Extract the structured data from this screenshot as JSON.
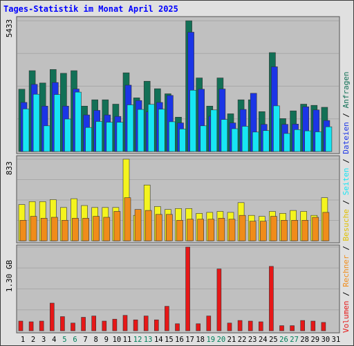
{
  "title": "Tages-Statistik im Monat April 2025",
  "chart_data": [
    {
      "type": "bar",
      "panel": "top",
      "y_max_label": "5433",
      "ylim": [
        0,
        5433
      ],
      "categories": [
        "1",
        "2",
        "3",
        "4",
        "5",
        "6",
        "7",
        "8",
        "9",
        "10",
        "11",
        "12",
        "13",
        "14",
        "15",
        "16",
        "17",
        "18",
        "19",
        "20",
        "21",
        "22",
        "23",
        "24",
        "25",
        "26",
        "27",
        "28",
        "29",
        "30",
        "31"
      ],
      "weekend_days": [
        "5",
        "6",
        "12",
        "13",
        "19",
        "20",
        "26",
        "27"
      ],
      "series": [
        {
          "name": "Anfragen",
          "color": "#127056",
          "values": [
            2590,
            3360,
            2850,
            3410,
            3250,
            3360,
            1890,
            2150,
            2150,
            1970,
            3270,
            2230,
            2920,
            2610,
            2400,
            1430,
            5433,
            3060,
            1890,
            3060,
            1570,
            2150,
            2150,
            1660,
            4110,
            1370,
            1690,
            1970,
            1920,
            1840,
            null
          ]
        },
        {
          "name": "Dateien",
          "color": "#1b35e6",
          "values": [
            2040,
            2790,
            1890,
            2870,
            1890,
            2600,
            1520,
            1710,
            1520,
            1460,
            2760,
            2120,
            1650,
            2040,
            2330,
            1190,
            4960,
            2590,
            1470,
            2600,
            1190,
            1750,
            2420,
            1130,
            3520,
            1130,
            1140,
            1860,
            1730,
            1290,
            null
          ]
        },
        {
          "name": "Seiten",
          "color": "#17e6f4",
          "values": [
            1770,
            2380,
            1070,
            2370,
            1350,
            2470,
            1000,
            1250,
            1220,
            1220,
            1940,
            1750,
            1960,
            1760,
            1240,
            940,
            2550,
            1070,
            1730,
            1330,
            950,
            1050,
            810,
            870,
            1900,
            750,
            910,
            860,
            820,
            1030,
            null
          ]
        }
      ]
    },
    {
      "type": "bar",
      "panel": "middle",
      "y_max_label": "833",
      "ylim": [
        0,
        833
      ],
      "series": [
        {
          "name": "Besuche",
          "color": "#f4f41e",
          "values": [
            370,
            400,
            400,
            420,
            340,
            430,
            360,
            340,
            340,
            340,
            833,
            260,
            570,
            350,
            320,
            330,
            330,
            280,
            290,
            300,
            290,
            390,
            260,
            250,
            300,
            280,
            310,
            300,
            260,
            440,
            null
          ]
        },
        {
          "name": "Rechner",
          "color": "#f08c1a",
          "values": [
            210,
            250,
            230,
            240,
            210,
            230,
            230,
            250,
            240,
            300,
            440,
            320,
            310,
            270,
            270,
            210,
            220,
            220,
            220,
            230,
            220,
            260,
            200,
            200,
            250,
            210,
            210,
            210,
            240,
            290,
            null
          ]
        }
      ]
    },
    {
      "type": "bar",
      "panel": "bottom",
      "y_max_label": "1.30 GB",
      "ylim": [
        0,
        1.3
      ],
      "series": [
        {
          "name": "Volumen",
          "color": "#e61717",
          "values": [
            0.15,
            0.14,
            0.15,
            0.43,
            0.22,
            0.12,
            0.21,
            0.23,
            0.15,
            0.18,
            0.24,
            0.17,
            0.23,
            0.17,
            0.38,
            0.11,
            1.3,
            0.11,
            0.23,
            0.96,
            0.12,
            0.16,
            0.15,
            0.14,
            1.0,
            0.08,
            0.08,
            0.16,
            0.15,
            0.13,
            null
          ]
        }
      ]
    }
  ],
  "legend": [
    {
      "text": "Volumen",
      "color": "#e61717"
    },
    {
      "text": "Rechner",
      "color": "#f08c1a"
    },
    {
      "text": "Besuche",
      "color": "#e0c000"
    },
    {
      "text": "Seiten",
      "color": "#17e6f4"
    },
    {
      "text": "Dateien",
      "color": "#1b35e6"
    },
    {
      "text": "Anfragen",
      "color": "#127056"
    }
  ],
  "legend_separator": " / ",
  "colors": {
    "weekday_label": "#000000",
    "weekend_label": "#00805a",
    "panel_bg": "#c0c0c0",
    "grid": "#a8a8a8"
  }
}
